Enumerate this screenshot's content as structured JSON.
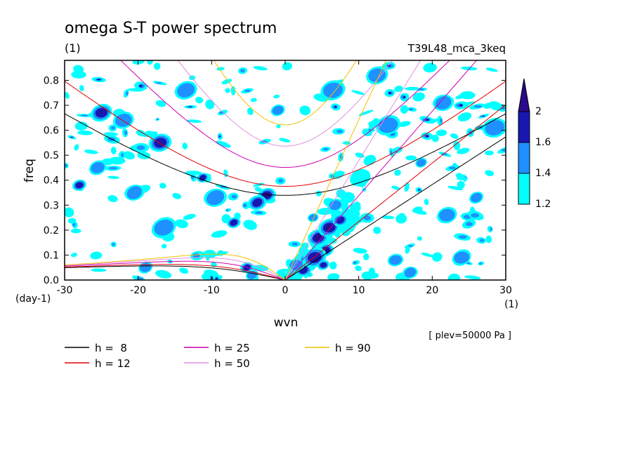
{
  "chart_data": {
    "type": "heatmap",
    "title": "omega S-T power spectrum",
    "subtitle_left": "(1)",
    "subtitle_right": "T39L48_mca_3keq",
    "xlabel": "wvn",
    "ylabel": "freq",
    "x_unit": "(1)",
    "y_unit": "(day-1)",
    "level_note": "[ plev=50000 Pa ]",
    "xlim": [
      -30,
      30
    ],
    "ylim": [
      0,
      0.88
    ],
    "xticks": [
      "-30",
      "-20",
      "-10",
      "0",
      "10",
      "20",
      "30"
    ],
    "xtick_values": [
      -30,
      -20,
      -10,
      0,
      10,
      20,
      30
    ],
    "yticks": [
      "0.0",
      "0.1",
      "0.2",
      "0.3",
      "0.4",
      "0.5",
      "0.6",
      "0.7",
      "0.8"
    ],
    "ytick_values": [
      0,
      0.1,
      0.2,
      0.3,
      0.4,
      0.5,
      0.6,
      0.7,
      0.8
    ],
    "colorbar": {
      "labels": [
        "1.2",
        "1.4",
        "1.6",
        "2"
      ],
      "levels": [
        1.2,
        1.4,
        1.6,
        1.8,
        2.0
      ],
      "colors": [
        "#00ffff",
        "#1e90ff",
        "#1818b0",
        "#2a0a8a"
      ]
    },
    "dispersion_curves": [
      {
        "name": "h =  8",
        "h": 8,
        "color": "#000000"
      },
      {
        "name": "h = 12",
        "h": 12,
        "color": "#e00000"
      },
      {
        "name": "h = 25",
        "h": 25,
        "color": "#d000b0"
      },
      {
        "name": "h = 50",
        "h": 50,
        "color": "#e090e0"
      },
      {
        "name": "h = 90",
        "h": 90,
        "color": "#f0c000"
      }
    ],
    "blobs": [
      {
        "x": 4.5,
        "y": 0.17,
        "level": 4
      },
      {
        "x": 5.5,
        "y": 0.12,
        "level": 4
      },
      {
        "x": 3.0,
        "y": 0.08,
        "level": 4
      },
      {
        "x": 6.0,
        "y": 0.21,
        "level": 4
      },
      {
        "x": 2.5,
        "y": 0.04,
        "level": 3
      },
      {
        "x": 7.5,
        "y": 0.24,
        "level": 3
      },
      {
        "x": 4.0,
        "y": 0.09,
        "level": 3
      },
      {
        "x": 5.2,
        "y": 0.06,
        "level": 3
      },
      {
        "x": 3.8,
        "y": 0.25,
        "level": 2
      },
      {
        "x": 6.8,
        "y": 0.3,
        "level": 2
      },
      {
        "x": 8.5,
        "y": 0.33,
        "level": 1
      },
      {
        "x": 10.2,
        "y": 0.41,
        "level": 1
      },
      {
        "x": 11.5,
        "y": 0.48,
        "level": 1
      },
      {
        "x": 1.5,
        "y": 0.06,
        "level": 2
      },
      {
        "x": -2.5,
        "y": 0.34,
        "level": 4
      },
      {
        "x": -3.8,
        "y": 0.31,
        "level": 3
      },
      {
        "x": -11.2,
        "y": 0.41,
        "level": 3
      },
      {
        "x": -17.0,
        "y": 0.55,
        "level": 3
      },
      {
        "x": -25.0,
        "y": 0.67,
        "level": 3
      },
      {
        "x": -28.0,
        "y": 0.38,
        "level": 3
      },
      {
        "x": -7.0,
        "y": 0.23,
        "level": 3
      },
      {
        "x": -5.2,
        "y": 0.05,
        "level": 3
      },
      {
        "x": -4.5,
        "y": 0.02,
        "level": 2
      },
      {
        "x": -16.5,
        "y": 0.21,
        "level": 2
      },
      {
        "x": -20.5,
        "y": 0.35,
        "level": 2
      },
      {
        "x": -22.0,
        "y": 0.64,
        "level": 2
      },
      {
        "x": -13.5,
        "y": 0.76,
        "level": 2
      },
      {
        "x": -19.0,
        "y": 0.05,
        "level": 2
      },
      {
        "x": -25.5,
        "y": 0.45,
        "level": 2
      },
      {
        "x": -9.5,
        "y": 0.33,
        "level": 2
      },
      {
        "x": -1.0,
        "y": 0.68,
        "level": 2
      },
      {
        "x": 14.0,
        "y": 0.62,
        "level": 2
      },
      {
        "x": 18.5,
        "y": 0.47,
        "level": 2
      },
      {
        "x": 12.5,
        "y": 0.82,
        "level": 2
      },
      {
        "x": 6.5,
        "y": 0.76,
        "level": 2
      },
      {
        "x": 17.0,
        "y": 0.03,
        "level": 2
      },
      {
        "x": 24.0,
        "y": 0.09,
        "level": 2
      },
      {
        "x": 26.0,
        "y": 0.33,
        "level": 2
      },
      {
        "x": 22.0,
        "y": 0.26,
        "level": 2
      },
      {
        "x": 15.0,
        "y": 0.08,
        "level": 2
      },
      {
        "x": 28.5,
        "y": 0.61,
        "level": 2
      },
      {
        "x": 21.5,
        "y": 0.71,
        "level": 2
      }
    ]
  }
}
